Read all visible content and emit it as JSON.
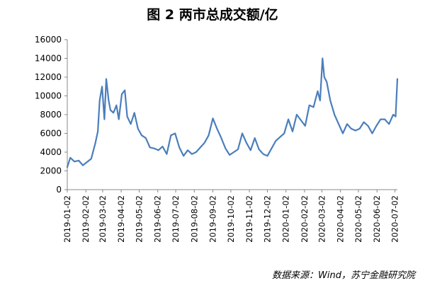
{
  "chart_data": {
    "type": "line",
    "title": "图 2 两市总成交额/亿",
    "source": "数据来源：Wind，苏宁金融研究院",
    "ylim": [
      0,
      16000
    ],
    "yticks": [
      0,
      2000,
      4000,
      6000,
      8000,
      10000,
      12000,
      14000,
      16000
    ],
    "xtick_labels": [
      "2019-01-02",
      "2019-02-02",
      "2019-03-02",
      "2019-04-02",
      "2019-05-02",
      "2019-06-02",
      "2019-07-02",
      "2019-08-02",
      "2019-09-02",
      "2019-10-02",
      "2019-11-02",
      "2019-12-02",
      "2020-01-02",
      "2020-02-02",
      "2020-03-02",
      "2020-04-02",
      "2020-05-02",
      "2020-06-02",
      "2020-07-02"
    ],
    "grid": false,
    "legend": "none",
    "series": [
      {
        "color": "#4a7ebb",
        "x": [
          "2019-01-02",
          "2019-01-07",
          "2019-01-14",
          "2019-01-21",
          "2019-01-28",
          "2019-02-11",
          "2019-02-18",
          "2019-02-22",
          "2019-02-25",
          "2019-03-01",
          "2019-03-05",
          "2019-03-08",
          "2019-03-12",
          "2019-03-15",
          "2019-03-20",
          "2019-03-25",
          "2019-03-29",
          "2019-04-03",
          "2019-04-08",
          "2019-04-12",
          "2019-04-18",
          "2019-04-24",
          "2019-04-30",
          "2019-05-06",
          "2019-05-13",
          "2019-05-20",
          "2019-05-27",
          "2019-06-03",
          "2019-06-10",
          "2019-06-17",
          "2019-06-24",
          "2019-07-01",
          "2019-07-08",
          "2019-07-15",
          "2019-07-22",
          "2019-07-29",
          "2019-08-05",
          "2019-08-12",
          "2019-08-19",
          "2019-08-26",
          "2019-09-02",
          "2019-09-09",
          "2019-09-16",
          "2019-09-23",
          "2019-09-30",
          "2019-10-14",
          "2019-10-21",
          "2019-10-28",
          "2019-11-04",
          "2019-11-11",
          "2019-11-18",
          "2019-11-25",
          "2019-12-02",
          "2019-12-09",
          "2019-12-16",
          "2019-12-23",
          "2019-12-30",
          "2020-01-06",
          "2020-01-13",
          "2020-01-20",
          "2020-02-03",
          "2020-02-10",
          "2020-02-17",
          "2020-02-24",
          "2020-02-28",
          "2020-03-03",
          "2020-03-06",
          "2020-03-10",
          "2020-03-16",
          "2020-03-23",
          "2020-03-30",
          "2020-04-06",
          "2020-04-13",
          "2020-04-20",
          "2020-04-27",
          "2020-05-04",
          "2020-05-11",
          "2020-05-18",
          "2020-05-25",
          "2020-06-01",
          "2020-06-08",
          "2020-06-15",
          "2020-06-22",
          "2020-06-29",
          "2020-07-03",
          "2020-07-06"
        ],
        "y": [
          2400,
          3400,
          3000,
          3100,
          2600,
          3300,
          5000,
          6200,
          9500,
          11000,
          7500,
          11800,
          9500,
          8500,
          8200,
          9000,
          7500,
          10200,
          10600,
          7800,
          7000,
          8200,
          6500,
          5800,
          5500,
          4500,
          4400,
          4200,
          4600,
          3800,
          5800,
          6000,
          4500,
          3600,
          4200,
          3800,
          4000,
          4500,
          5000,
          5800,
          7600,
          6500,
          5500,
          4400,
          3700,
          4300,
          6000,
          5000,
          4200,
          5500,
          4300,
          3800,
          3600,
          4400,
          5200,
          5600,
          6000,
          7500,
          6200,
          8000,
          6800,
          9000,
          8800,
          10500,
          9500,
          14000,
          12000,
          11500,
          9500,
          8000,
          7000,
          6000,
          7000,
          6500,
          6300,
          6500,
          7200,
          6800,
          6000,
          6800,
          7500,
          7500,
          7000,
          8000,
          7800,
          11800
        ]
      }
    ]
  }
}
